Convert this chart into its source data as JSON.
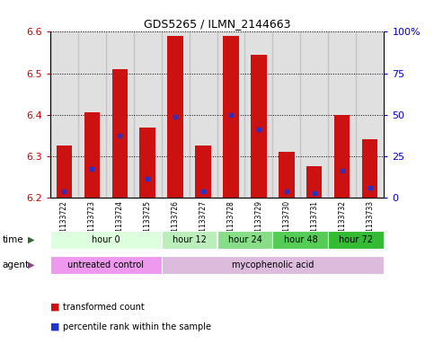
{
  "title": "GDS5265 / ILMN_2144663",
  "samples": [
    "GSM1133722",
    "GSM1133723",
    "GSM1133724",
    "GSM1133725",
    "GSM1133726",
    "GSM1133727",
    "GSM1133728",
    "GSM1133729",
    "GSM1133730",
    "GSM1133731",
    "GSM1133732",
    "GSM1133733"
  ],
  "bar_base": 6.2,
  "bar_tops": [
    6.325,
    6.405,
    6.51,
    6.37,
    6.59,
    6.325,
    6.59,
    6.545,
    6.31,
    6.275,
    6.4,
    6.34
  ],
  "blue_values": [
    6.215,
    6.27,
    6.35,
    6.245,
    6.395,
    6.215,
    6.4,
    6.365,
    6.215,
    6.21,
    6.265,
    6.225
  ],
  "ylim": [
    6.2,
    6.6
  ],
  "yticks_left": [
    6.2,
    6.3,
    6.4,
    6.5,
    6.6
  ],
  "yticks_right": [
    0,
    25,
    50,
    75,
    100
  ],
  "ytick_right_labels": [
    "0",
    "25",
    "50",
    "75",
    "100%"
  ],
  "bar_color": "#cc1111",
  "blue_color": "#2233cc",
  "grid_color": "#000000",
  "bg_plot": "#ffffff",
  "bg_figure": "#ffffff",
  "time_groups": [
    {
      "label": "hour 0",
      "start": 0,
      "end": 4,
      "color": "#ddffdd"
    },
    {
      "label": "hour 12",
      "start": 4,
      "end": 6,
      "color": "#bbeebb"
    },
    {
      "label": "hour 24",
      "start": 6,
      "end": 8,
      "color": "#88dd88"
    },
    {
      "label": "hour 48",
      "start": 8,
      "end": 10,
      "color": "#55cc55"
    },
    {
      "label": "hour 72",
      "start": 10,
      "end": 12,
      "color": "#33bb33"
    }
  ],
  "agent_groups": [
    {
      "label": "untreated control",
      "start": 0,
      "end": 4,
      "color": "#ee99ee"
    },
    {
      "label": "mycophenolic acid",
      "start": 4,
      "end": 12,
      "color": "#ddbbdd"
    }
  ],
  "legend_red": "transformed count",
  "legend_blue": "percentile rank within the sample",
  "xlabel_time": "time",
  "xlabel_agent": "agent",
  "tick_label_color_left": "#cc0000",
  "tick_label_color_right": "#0000cc",
  "bar_width": 0.55,
  "sample_bg_color": "#bbbbbb"
}
